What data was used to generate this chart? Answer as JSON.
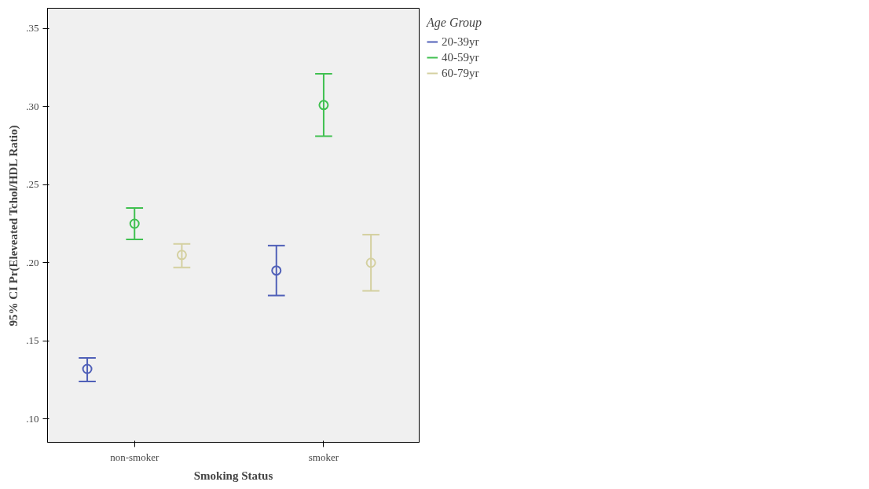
{
  "chart_data": {
    "type": "scatter",
    "xlabel": "Smoking Status",
    "ylabel": "95% CI Pr(Eleveated Tchol/HDL Ratio)",
    "legend_title": "Age Group",
    "categories": [
      "non-smoker",
      "smoker"
    ],
    "series": [
      {
        "name": "20-39yr",
        "color": "#5060b8",
        "values": [
          0.132,
          0.195
        ],
        "errors": [
          [
            0.124,
            0.139
          ],
          [
            0.179,
            0.211
          ]
        ]
      },
      {
        "name": "40-59yr",
        "color": "#40c050",
        "values": [
          0.225,
          0.301
        ],
        "errors": [
          [
            0.215,
            0.235
          ],
          [
            0.281,
            0.321
          ]
        ]
      },
      {
        "name": "60-79yr",
        "color": "#d4d0a0",
        "values": [
          0.205,
          0.2
        ],
        "errors": [
          [
            0.197,
            0.212
          ],
          [
            0.182,
            0.218
          ]
        ]
      }
    ],
    "ylim": [
      0.085,
      0.363
    ],
    "yticks": [
      {
        "value": 0.1,
        "label": ".10"
      },
      {
        "value": 0.15,
        "label": ".15"
      },
      {
        "value": 0.2,
        "label": ".20"
      },
      {
        "value": 0.25,
        "label": ".25"
      },
      {
        "value": 0.3,
        "label": ".30"
      },
      {
        "value": 0.35,
        "label": ".35"
      }
    ],
    "marker": "circle",
    "grid": false,
    "legend": "top right"
  }
}
